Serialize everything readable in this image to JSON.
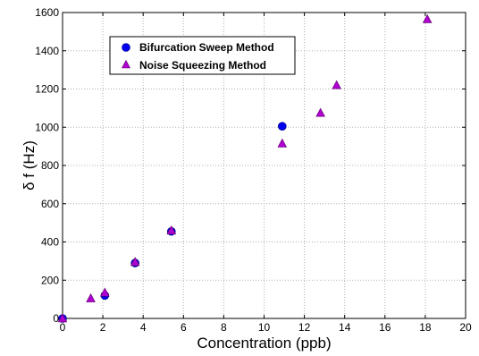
{
  "chart_data": {
    "type": "scatter",
    "xlabel": "Concentration (ppb)",
    "ylabel": "δ f (Hz)",
    "xlim": [
      0,
      20
    ],
    "ylim": [
      0,
      1600
    ],
    "x_ticks": [
      0,
      2,
      4,
      6,
      8,
      10,
      12,
      14,
      16,
      18,
      20
    ],
    "y_ticks": [
      0,
      200,
      400,
      600,
      800,
      1000,
      1200,
      1400,
      1600
    ],
    "grid": true,
    "legend_position": "top-left",
    "series": [
      {
        "name": "Bifurcation Sweep Method",
        "marker": "circle",
        "color": "#0000ee",
        "points": [
          {
            "x": 0,
            "y": 0
          },
          {
            "x": 2.1,
            "y": 120
          },
          {
            "x": 3.6,
            "y": 290
          },
          {
            "x": 5.4,
            "y": 455
          },
          {
            "x": 10.9,
            "y": 1005
          }
        ]
      },
      {
        "name": "Noise Squeezing Method",
        "marker": "triangle",
        "color": "#b000d0",
        "points": [
          {
            "x": 0,
            "y": 0
          },
          {
            "x": 1.4,
            "y": 105
          },
          {
            "x": 2.1,
            "y": 135
          },
          {
            "x": 3.6,
            "y": 295
          },
          {
            "x": 5.4,
            "y": 460
          },
          {
            "x": 10.9,
            "y": 915
          },
          {
            "x": 12.8,
            "y": 1075
          },
          {
            "x": 13.6,
            "y": 1220
          },
          {
            "x": 18.1,
            "y": 1565
          }
        ]
      }
    ]
  }
}
